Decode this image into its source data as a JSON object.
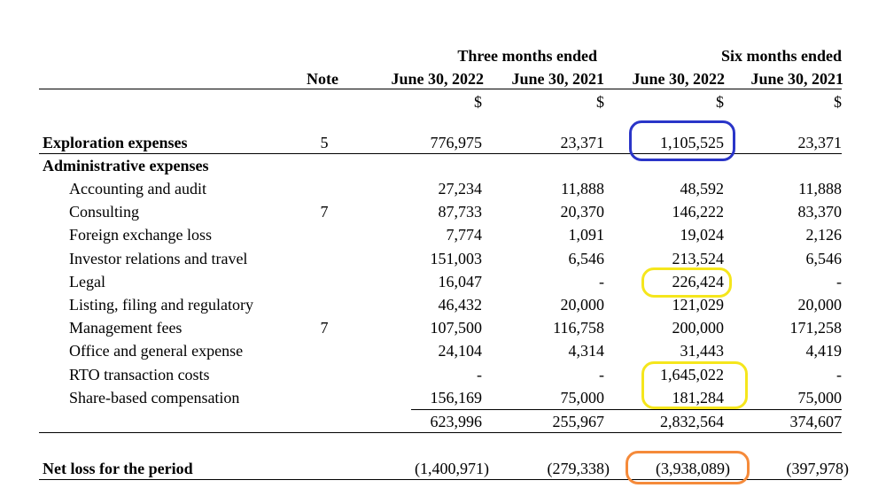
{
  "header": {
    "group1": "Three months ended",
    "group2": "Six months ended",
    "note": "Note",
    "col1": "June 30, 2022",
    "col2": "June 30, 2021",
    "col3": "June 30, 2022",
    "col4": "June 30, 2021",
    "currency": "$"
  },
  "exploration": {
    "label": "Exploration expenses",
    "note": "5",
    "v1": "776,975",
    "v2": "23,371",
    "v3": "1,105,525",
    "v4": "23,371"
  },
  "admin": {
    "label": "Administrative expenses",
    "items": [
      {
        "label": "Accounting and audit",
        "note": "",
        "v1": "27,234",
        "v2": "11,888",
        "v3": "48,592",
        "v4": "11,888"
      },
      {
        "label": "Consulting",
        "note": "7",
        "v1": "87,733",
        "v2": "20,370",
        "v3": "146,222",
        "v4": "83,370"
      },
      {
        "label": "Foreign exchange loss",
        "note": "",
        "v1": "7,774",
        "v2": "1,091",
        "v3": "19,024",
        "v4": "2,126"
      },
      {
        "label": "Investor relations and travel",
        "note": "",
        "v1": "151,003",
        "v2": "6,546",
        "v3": "213,524",
        "v4": "6,546"
      },
      {
        "label": "Legal",
        "note": "",
        "v1": "16,047",
        "v2": "-",
        "v3": "226,424",
        "v4": "-"
      },
      {
        "label": "Listing, filing and regulatory",
        "note": "",
        "v1": "46,432",
        "v2": "20,000",
        "v3": "121,029",
        "v4": "20,000"
      },
      {
        "label": "Management fees",
        "note": "7",
        "v1": "107,500",
        "v2": "116,758",
        "v3": "200,000",
        "v4": "171,258"
      },
      {
        "label": "Office and general expense",
        "note": "",
        "v1": "24,104",
        "v2": "4,314",
        "v3": "31,443",
        "v4": "4,419"
      },
      {
        "label": "RTO transaction costs",
        "note": "",
        "v1": "-",
        "v2": "-",
        "v3": "1,645,022",
        "v4": "-"
      },
      {
        "label": "Share-based compensation",
        "note": "",
        "v1": "156,169",
        "v2": "75,000",
        "v3": "181,284",
        "v4": "75,000"
      }
    ],
    "total": {
      "v1": "623,996",
      "v2": "255,967",
      "v3": "2,832,564",
      "v4": "374,607"
    }
  },
  "net_loss": {
    "label": "Net loss for the period",
    "v1": "(1,400,971)",
    "v2": "(279,338)",
    "v3": "(3,938,089)",
    "v4": "(397,978)"
  },
  "highlight_colors": {
    "blue": "#2a35c8",
    "yellow": "#f5e61c",
    "orange": "#f58a3a"
  }
}
